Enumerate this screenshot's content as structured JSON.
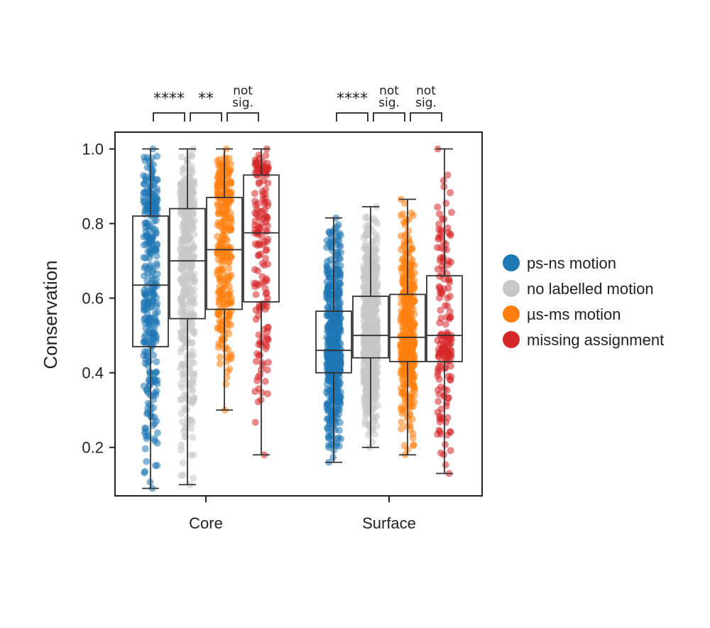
{
  "chart_data": {
    "type": "box",
    "ylabel": "Conservation",
    "ylim": [
      0.07,
      1.045
    ],
    "y_ticks": [
      "0.2",
      "0.4",
      "0.6",
      "0.8",
      "1.0"
    ],
    "y_tick_values": [
      0.2,
      0.4,
      0.6,
      0.8,
      1.0
    ],
    "groups": [
      "Core",
      "Surface"
    ],
    "series_names": [
      "ps-ns motion",
      "no labelled motion",
      "µs-ms motion",
      "missing assignment"
    ],
    "colors": {
      "ps-ns motion": "#1f77b4",
      "no labelled motion": "#c7c7c7",
      "µs-ms motion": "#ff7f0e",
      "missing assignment": "#d62728"
    },
    "boxes": [
      {
        "group": "Core",
        "series": "ps-ns motion",
        "whisker_low": 0.09,
        "q1": 0.47,
        "median": 0.635,
        "q3": 0.82,
        "whisker_high": 1.0
      },
      {
        "group": "Core",
        "series": "no labelled motion",
        "whisker_low": 0.1,
        "q1": 0.545,
        "median": 0.7,
        "q3": 0.84,
        "whisker_high": 1.0
      },
      {
        "group": "Core",
        "series": "µs-ms motion",
        "whisker_low": 0.3,
        "q1": 0.57,
        "median": 0.73,
        "q3": 0.87,
        "whisker_high": 1.0
      },
      {
        "group": "Core",
        "series": "missing assignment",
        "whisker_low": 0.18,
        "q1": 0.59,
        "median": 0.775,
        "q3": 0.93,
        "whisker_high": 1.0
      },
      {
        "group": "Surface",
        "series": "ps-ns motion",
        "whisker_low": 0.16,
        "q1": 0.4,
        "median": 0.46,
        "q3": 0.565,
        "whisker_high": 0.815
      },
      {
        "group": "Surface",
        "series": "no labelled motion",
        "whisker_low": 0.2,
        "q1": 0.44,
        "median": 0.5,
        "q3": 0.605,
        "whisker_high": 0.845
      },
      {
        "group": "Surface",
        "series": "µs-ms motion",
        "whisker_low": 0.18,
        "q1": 0.43,
        "median": 0.495,
        "q3": 0.61,
        "whisker_high": 0.865
      },
      {
        "group": "Surface",
        "series": "missing assignment",
        "whisker_low": 0.13,
        "q1": 0.43,
        "median": 0.5,
        "q3": 0.66,
        "whisker_high": 1.0
      }
    ],
    "significance": [
      {
        "group": "Core",
        "between": [
          0,
          1
        ],
        "label": "****"
      },
      {
        "group": "Core",
        "between": [
          1,
          2
        ],
        "label": "**"
      },
      {
        "group": "Core",
        "between": [
          2,
          3
        ],
        "label_lines": [
          "not",
          "sig."
        ]
      },
      {
        "group": "Surface",
        "between": [
          0,
          1
        ],
        "label": "****"
      },
      {
        "group": "Surface",
        "between": [
          1,
          2
        ],
        "label_lines": [
          "not",
          "sig."
        ]
      },
      {
        "group": "Surface",
        "between": [
          2,
          3
        ],
        "label_lines": [
          "not",
          "sig."
        ]
      }
    ],
    "legend_position": "right",
    "grid": false
  }
}
